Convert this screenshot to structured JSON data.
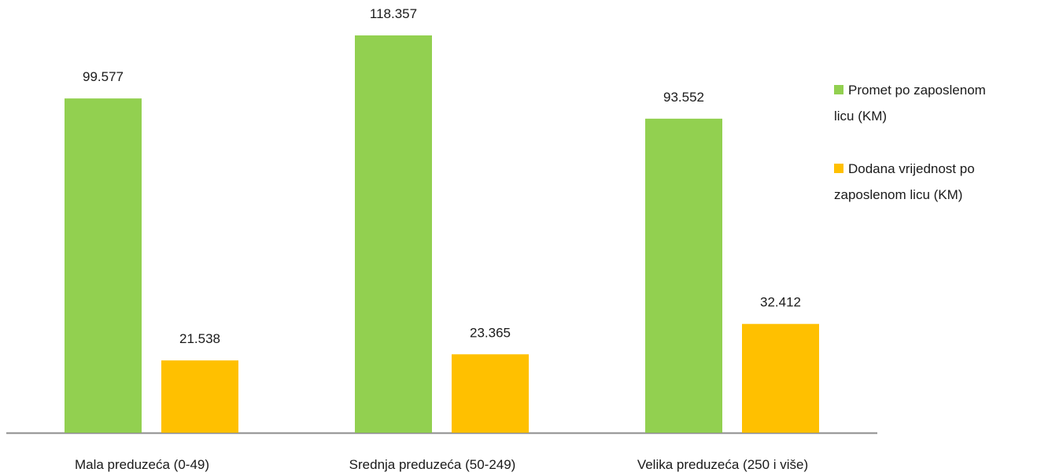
{
  "chart_data": {
    "type": "bar",
    "categories": [
      "Mala preduzeća (0-49)",
      "Srednja preduzeća (50-249)",
      "Velika preduzeća (250 i više)"
    ],
    "series": [
      {
        "name": "Promet po zaposlenom licu (KM)",
        "color": "#92d050",
        "values": [
          99577,
          118357,
          93552
        ],
        "value_labels": [
          "99.577",
          "118.357",
          "93.552"
        ]
      },
      {
        "name": "Dodana vrijednost po zaposlenom licu (KM)",
        "color": "#ffc000",
        "values": [
          21538,
          23365,
          32412
        ],
        "value_labels": [
          "21.538",
          "23.365",
          "32.412"
        ]
      }
    ],
    "legend": "right"
  }
}
